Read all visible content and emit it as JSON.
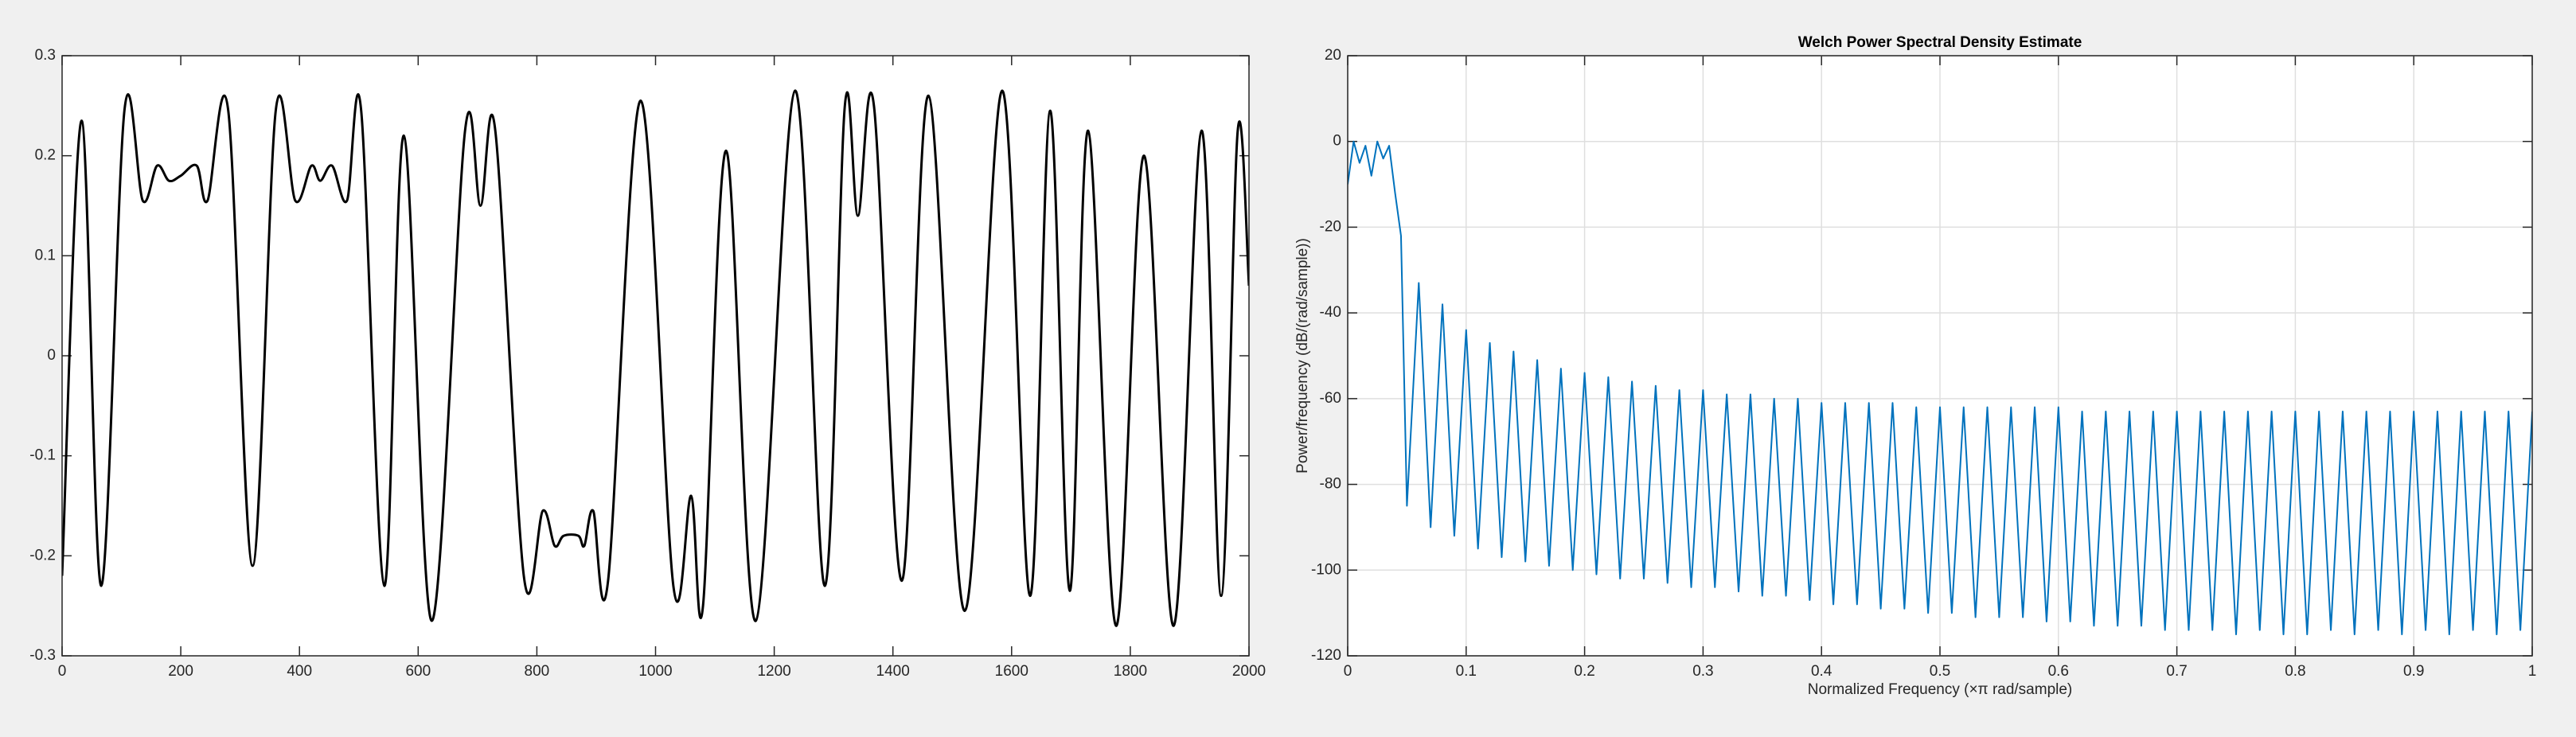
{
  "chart_data": [
    {
      "type": "line",
      "x": [
        0,
        33,
        66,
        105,
        136,
        160,
        180,
        200,
        227,
        245,
        280,
        321,
        360,
        393,
        420,
        435,
        455,
        480,
        504,
        543,
        576,
        623,
        679,
        705,
        730,
        778,
        810,
        830,
        845,
        870,
        880,
        895,
        920,
        975,
        1030,
        1060,
        1080,
        1119,
        1169,
        1235,
        1285,
        1319,
        1341,
        1368,
        1415,
        1460,
        1521,
        1584,
        1631,
        1665,
        1698,
        1729,
        1776,
        1823,
        1873,
        1920,
        1953,
        1981,
        2000
      ],
      "series": [
        {
          "color": "#000000",
          "values": [
            -0.22,
            0.235,
            -0.23,
            0.245,
            0.155,
            0.19,
            0.175,
            0.18,
            0.19,
            0.155,
            0.245,
            -0.21,
            0.245,
            0.155,
            0.19,
            0.175,
            0.19,
            0.155,
            0.245,
            -0.23,
            0.22,
            -0.265,
            0.225,
            0.15,
            0.225,
            -0.22,
            -0.155,
            -0.19,
            -0.18,
            -0.18,
            -0.19,
            -0.155,
            -0.225,
            0.255,
            -0.23,
            -0.14,
            -0.25,
            0.205,
            -0.265,
            0.265,
            -0.23,
            0.25,
            0.14,
            0.25,
            -0.225,
            0.26,
            -0.255,
            0.265,
            -0.24,
            0.245,
            -0.235,
            0.225,
            -0.27,
            0.2,
            -0.27,
            0.225,
            -0.24,
            0.225,
            0.07
          ]
        }
      ],
      "xlim": [
        0,
        2000
      ],
      "xticks": [
        0,
        200,
        400,
        600,
        800,
        1000,
        1200,
        1400,
        1600,
        1800,
        2000
      ],
      "ylim": [
        -0.3,
        0.3
      ],
      "yticks": [
        0.3,
        0.2,
        0.1,
        0,
        -0.1,
        -0.2,
        -0.3
      ],
      "grid": false
    },
    {
      "type": "line",
      "title": "Welch Power Spectral Density Estimate",
      "xlabel": "Normalized Frequency  (×π rad/sample)",
      "ylabel": "Power/frequency (dB/(rad/sample))",
      "x": [
        0,
        0.005,
        0.01,
        0.015,
        0.02,
        0.025,
        0.03,
        0.035,
        0.04,
        0.045,
        0.05,
        0.06,
        0.07,
        0.08,
        0.09,
        0.1,
        0.11,
        0.12,
        0.13,
        0.14,
        0.15,
        0.16,
        0.17,
        0.18,
        0.19,
        0.2,
        0.21,
        0.22,
        0.23,
        0.24,
        0.25,
        0.26,
        0.27,
        0.28,
        0.29,
        0.3,
        0.31,
        0.32,
        0.33,
        0.34,
        0.35,
        0.36,
        0.37,
        0.38,
        0.39,
        0.4,
        0.41,
        0.42,
        0.43,
        0.44,
        0.45,
        0.46,
        0.47,
        0.48,
        0.49,
        0.5,
        0.51,
        0.52,
        0.53,
        0.54,
        0.55,
        0.56,
        0.57,
        0.58,
        0.59,
        0.6,
        0.61,
        0.62,
        0.63,
        0.64,
        0.65,
        0.66,
        0.67,
        0.68,
        0.69,
        0.7,
        0.71,
        0.72,
        0.73,
        0.74,
        0.75,
        0.76,
        0.77,
        0.78,
        0.79,
        0.8,
        0.81,
        0.82,
        0.83,
        0.84,
        0.85,
        0.86,
        0.87,
        0.88,
        0.89,
        0.9,
        0.91,
        0.92,
        0.93,
        0.94,
        0.95,
        0.96,
        0.97,
        0.98,
        0.99,
        1
      ],
      "series": [
        {
          "color": "#0072bd",
          "values": [
            -10,
            0,
            -5,
            -1,
            -8,
            0,
            -4,
            -1,
            -12,
            -22,
            -85,
            -33,
            -90,
            -38,
            -92,
            -44,
            -95,
            -47,
            -97,
            -49,
            -98,
            -51,
            -99,
            -53,
            -100,
            -54,
            -101,
            -55,
            -102,
            -56,
            -102,
            -57,
            -103,
            -58,
            -104,
            -58,
            -104,
            -59,
            -105,
            -59,
            -106,
            -60,
            -106,
            -60,
            -107,
            -61,
            -108,
            -61,
            -108,
            -61,
            -109,
            -61,
            -109,
            -62,
            -110,
            -62,
            -110,
            -62,
            -111,
            -62,
            -111,
            -62,
            -111,
            -62,
            -112,
            -62,
            -112,
            -63,
            -113,
            -63,
            -113,
            -63,
            -113,
            -63,
            -114,
            -63,
            -114,
            -63,
            -114,
            -63,
            -115,
            -63,
            -114,
            -63,
            -115,
            -63,
            -115,
            -63,
            -114,
            -63,
            -115,
            -63,
            -114,
            -63,
            -115,
            -63,
            -114,
            -63,
            -115,
            -63,
            -114,
            -63,
            -115,
            -63,
            -114,
            -63
          ]
        }
      ],
      "xlim": [
        0,
        1
      ],
      "xticks": [
        0,
        0.1,
        0.2,
        0.3,
        0.4,
        0.5,
        0.6,
        0.7,
        0.8,
        0.9,
        1
      ],
      "ylim": [
        -120,
        20
      ],
      "yticks": [
        20,
        0,
        -20,
        -40,
        -60,
        -80,
        -100,
        -120
      ],
      "grid": true
    }
  ]
}
